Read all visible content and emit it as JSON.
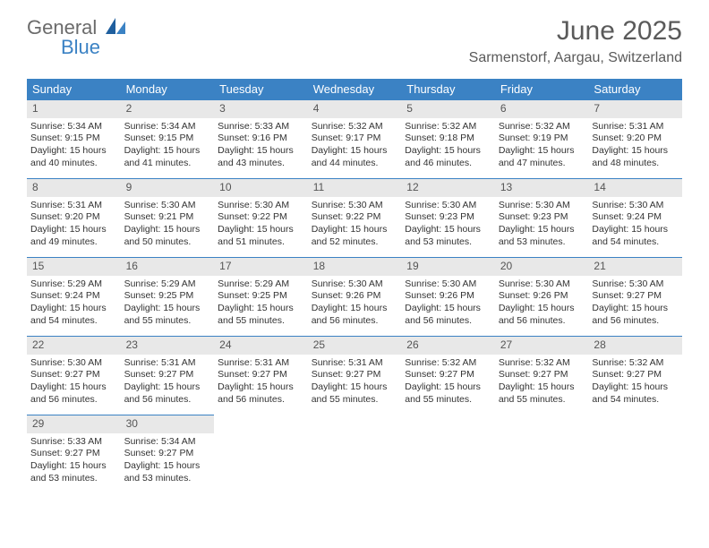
{
  "brand": {
    "general": "General",
    "blue": "Blue"
  },
  "title": "June 2025",
  "location": "Sarmenstorf, Aargau, Switzerland",
  "colors": {
    "header_bg": "#3b82c4",
    "header_text": "#ffffff",
    "daynum_bg": "#e8e8e8",
    "cell_border": "#3b82c4",
    "body_text": "#333333",
    "logo_gray": "#6b6b6b",
    "logo_blue": "#3b82c4"
  },
  "weekdays": [
    "Sunday",
    "Monday",
    "Tuesday",
    "Wednesday",
    "Thursday",
    "Friday",
    "Saturday"
  ],
  "days": [
    {
      "n": 1,
      "sr": "5:34 AM",
      "ss": "9:15 PM",
      "dl": "15 hours and 40 minutes."
    },
    {
      "n": 2,
      "sr": "5:34 AM",
      "ss": "9:15 PM",
      "dl": "15 hours and 41 minutes."
    },
    {
      "n": 3,
      "sr": "5:33 AM",
      "ss": "9:16 PM",
      "dl": "15 hours and 43 minutes."
    },
    {
      "n": 4,
      "sr": "5:32 AM",
      "ss": "9:17 PM",
      "dl": "15 hours and 44 minutes."
    },
    {
      "n": 5,
      "sr": "5:32 AM",
      "ss": "9:18 PM",
      "dl": "15 hours and 46 minutes."
    },
    {
      "n": 6,
      "sr": "5:32 AM",
      "ss": "9:19 PM",
      "dl": "15 hours and 47 minutes."
    },
    {
      "n": 7,
      "sr": "5:31 AM",
      "ss": "9:20 PM",
      "dl": "15 hours and 48 minutes."
    },
    {
      "n": 8,
      "sr": "5:31 AM",
      "ss": "9:20 PM",
      "dl": "15 hours and 49 minutes."
    },
    {
      "n": 9,
      "sr": "5:30 AM",
      "ss": "9:21 PM",
      "dl": "15 hours and 50 minutes."
    },
    {
      "n": 10,
      "sr": "5:30 AM",
      "ss": "9:22 PM",
      "dl": "15 hours and 51 minutes."
    },
    {
      "n": 11,
      "sr": "5:30 AM",
      "ss": "9:22 PM",
      "dl": "15 hours and 52 minutes."
    },
    {
      "n": 12,
      "sr": "5:30 AM",
      "ss": "9:23 PM",
      "dl": "15 hours and 53 minutes."
    },
    {
      "n": 13,
      "sr": "5:30 AM",
      "ss": "9:23 PM",
      "dl": "15 hours and 53 minutes."
    },
    {
      "n": 14,
      "sr": "5:30 AM",
      "ss": "9:24 PM",
      "dl": "15 hours and 54 minutes."
    },
    {
      "n": 15,
      "sr": "5:29 AM",
      "ss": "9:24 PM",
      "dl": "15 hours and 54 minutes."
    },
    {
      "n": 16,
      "sr": "5:29 AM",
      "ss": "9:25 PM",
      "dl": "15 hours and 55 minutes."
    },
    {
      "n": 17,
      "sr": "5:29 AM",
      "ss": "9:25 PM",
      "dl": "15 hours and 55 minutes."
    },
    {
      "n": 18,
      "sr": "5:30 AM",
      "ss": "9:26 PM",
      "dl": "15 hours and 56 minutes."
    },
    {
      "n": 19,
      "sr": "5:30 AM",
      "ss": "9:26 PM",
      "dl": "15 hours and 56 minutes."
    },
    {
      "n": 20,
      "sr": "5:30 AM",
      "ss": "9:26 PM",
      "dl": "15 hours and 56 minutes."
    },
    {
      "n": 21,
      "sr": "5:30 AM",
      "ss": "9:27 PM",
      "dl": "15 hours and 56 minutes."
    },
    {
      "n": 22,
      "sr": "5:30 AM",
      "ss": "9:27 PM",
      "dl": "15 hours and 56 minutes."
    },
    {
      "n": 23,
      "sr": "5:31 AM",
      "ss": "9:27 PM",
      "dl": "15 hours and 56 minutes."
    },
    {
      "n": 24,
      "sr": "5:31 AM",
      "ss": "9:27 PM",
      "dl": "15 hours and 56 minutes."
    },
    {
      "n": 25,
      "sr": "5:31 AM",
      "ss": "9:27 PM",
      "dl": "15 hours and 55 minutes."
    },
    {
      "n": 26,
      "sr": "5:32 AM",
      "ss": "9:27 PM",
      "dl": "15 hours and 55 minutes."
    },
    {
      "n": 27,
      "sr": "5:32 AM",
      "ss": "9:27 PM",
      "dl": "15 hours and 55 minutes."
    },
    {
      "n": 28,
      "sr": "5:32 AM",
      "ss": "9:27 PM",
      "dl": "15 hours and 54 minutes."
    },
    {
      "n": 29,
      "sr": "5:33 AM",
      "ss": "9:27 PM",
      "dl": "15 hours and 53 minutes."
    },
    {
      "n": 30,
      "sr": "5:34 AM",
      "ss": "9:27 PM",
      "dl": "15 hours and 53 minutes."
    }
  ],
  "labels": {
    "sunrise": "Sunrise:",
    "sunset": "Sunset:",
    "daylight": "Daylight:"
  }
}
